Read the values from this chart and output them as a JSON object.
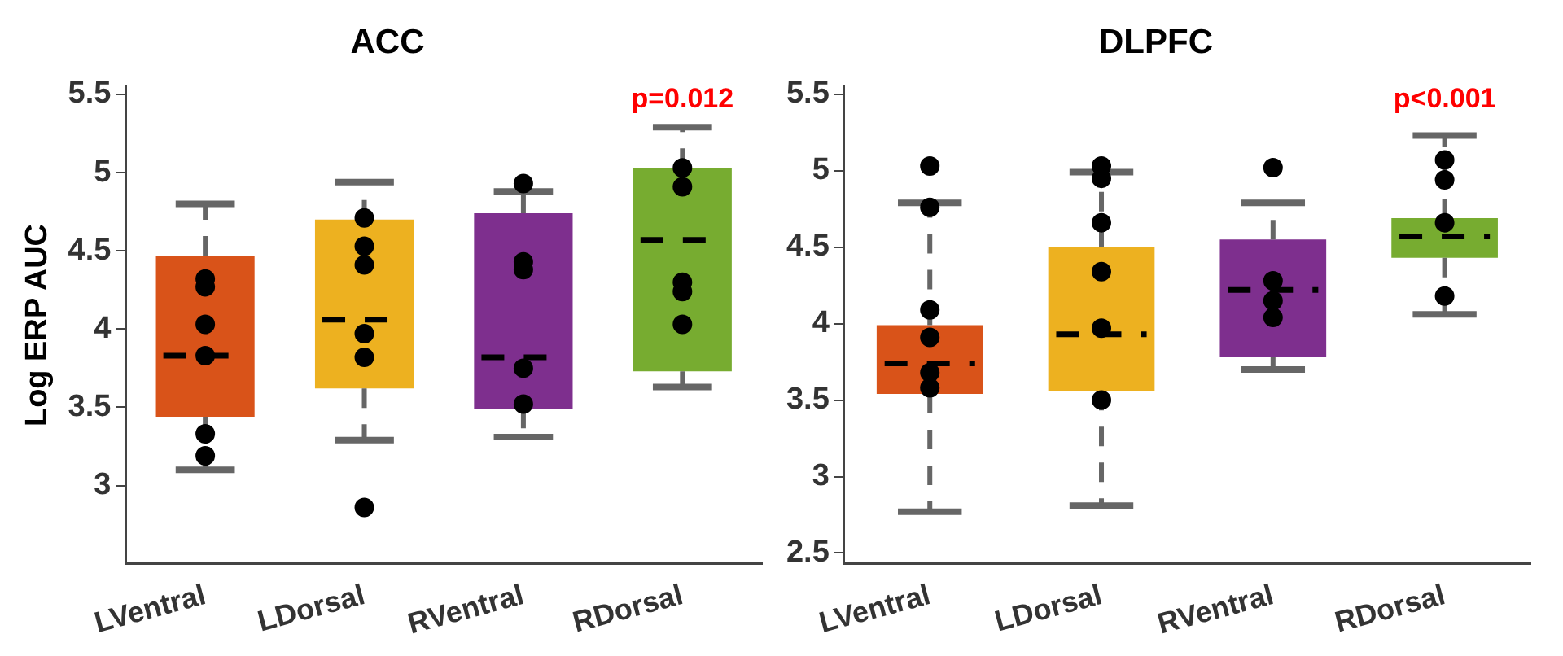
{
  "chart_data": [
    {
      "type": "box",
      "title": "ACC",
      "ylabel": "Log ERP AUC",
      "categories": [
        "LVentral",
        "LDorsal",
        "RVentral",
        "RDorsal"
      ],
      "colors": [
        "#d95319",
        "#edb120",
        "#7e2f8e",
        "#77ac30"
      ],
      "ylim": [
        2.5,
        5.55
      ],
      "yticks": [
        3,
        3.5,
        4,
        4.5,
        5,
        5.5
      ],
      "marker": "circle",
      "boxes": [
        {
          "low": 3.1,
          "q1": 3.44,
          "median": 3.83,
          "q3": 4.47,
          "high": 4.8
        },
        {
          "low": 3.29,
          "q1": 3.62,
          "median": 4.06,
          "q3": 4.7,
          "high": 4.94
        },
        {
          "low": 3.31,
          "q1": 3.49,
          "median": 3.82,
          "q3": 4.74,
          "high": 4.88
        },
        {
          "low": 3.63,
          "q1": 3.73,
          "median": 4.57,
          "q3": 5.03,
          "high": 5.29
        }
      ],
      "series": [
        {
          "type": "scatter",
          "color": "#000000",
          "x": [
            "LVentral",
            "LVentral",
            "LVentral",
            "LVentral",
            "LVentral",
            "LVentral",
            "LDorsal",
            "LDorsal",
            "LDorsal",
            "LDorsal",
            "LDorsal",
            "LDorsal",
            "RVentral",
            "RVentral",
            "RVentral",
            "RVentral",
            "RVentral",
            "RDorsal",
            "RDorsal",
            "RDorsal",
            "RDorsal",
            "RDorsal"
          ],
          "values": [
            4.32,
            4.27,
            4.03,
            3.83,
            3.33,
            3.19,
            4.71,
            4.53,
            4.41,
            3.97,
            3.82,
            2.86,
            4.93,
            4.43,
            4.38,
            3.75,
            3.52,
            5.03,
            4.91,
            4.3,
            4.24,
            4.03
          ]
        }
      ],
      "annotations": [
        "p=0.012"
      ]
    },
    {
      "type": "box",
      "title": "DLPFC",
      "categories": [
        "LVentral",
        "LDorsal",
        "RVentral",
        "RDorsal"
      ],
      "colors": [
        "#d95319",
        "#edb120",
        "#7e2f8e",
        "#77ac30"
      ],
      "ylim": [
        2.43,
        5.55
      ],
      "yticks": [
        2.5,
        3,
        3.5,
        4,
        4.5,
        5,
        5.5
      ],
      "marker": "circle",
      "boxes": [
        {
          "low": 2.77,
          "q1": 3.54,
          "median": 3.74,
          "q3": 3.99,
          "high": 4.79
        },
        {
          "low": 2.81,
          "q1": 3.56,
          "median": 3.93,
          "q3": 4.5,
          "high": 4.99
        },
        {
          "low": 3.7,
          "q1": 3.78,
          "median": 4.22,
          "q3": 4.55,
          "high": 4.79
        },
        {
          "low": 4.06,
          "q1": 4.43,
          "median": 4.57,
          "q3": 4.69,
          "high": 5.23
        }
      ],
      "series": [
        {
          "type": "scatter",
          "color": "#000000",
          "x": [
            "LVentral",
            "LVentral",
            "LVentral",
            "LVentral",
            "LVentral",
            "LVentral",
            "LDorsal",
            "LDorsal",
            "LDorsal",
            "LDorsal",
            "LDorsal",
            "LDorsal",
            "RVentral",
            "RVentral",
            "RVentral",
            "RVentral",
            "RDorsal",
            "RDorsal",
            "RDorsal",
            "RDorsal"
          ],
          "values": [
            5.03,
            4.76,
            4.09,
            3.91,
            3.68,
            3.58,
            5.03,
            4.95,
            4.66,
            4.34,
            3.97,
            3.5,
            5.02,
            4.28,
            4.15,
            4.04,
            5.07,
            4.94,
            4.66,
            4.18
          ]
        }
      ],
      "annotations": [
        "p<0.001"
      ]
    }
  ]
}
